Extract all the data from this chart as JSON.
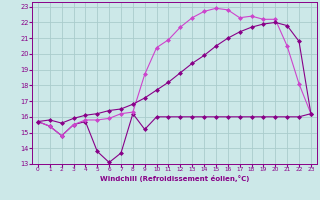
{
  "xlabel": "Windchill (Refroidissement éolien,°C)",
  "xlim": [
    -0.5,
    23.5
  ],
  "ylim": [
    13,
    23.3
  ],
  "yticks": [
    13,
    14,
    15,
    16,
    17,
    18,
    19,
    20,
    21,
    22,
    23
  ],
  "xticks": [
    0,
    1,
    2,
    3,
    4,
    5,
    6,
    7,
    8,
    9,
    10,
    11,
    12,
    13,
    14,
    15,
    16,
    17,
    18,
    19,
    20,
    21,
    22,
    23
  ],
  "bg_color": "#cce8e8",
  "grid_color": "#aacccc",
  "line_color": "#880088",
  "line_color2": "#cc44cc",
  "series_wc": [
    15.7,
    15.4,
    14.8,
    15.5,
    15.7,
    13.8,
    13.1,
    13.7,
    16.2,
    15.2,
    16.0,
    16.0,
    16.0,
    16.0,
    16.0,
    16.0,
    16.0,
    16.0,
    16.0,
    16.0,
    16.0,
    16.0,
    16.0,
    16.2
  ],
  "series_temp": [
    15.7,
    15.4,
    14.8,
    15.5,
    15.8,
    15.8,
    15.9,
    16.2,
    16.3,
    18.7,
    20.4,
    20.9,
    21.7,
    22.3,
    22.7,
    22.9,
    22.8,
    22.3,
    22.4,
    22.2,
    22.2,
    20.5,
    18.1,
    16.2
  ],
  "series_lin": [
    15.7,
    15.8,
    15.6,
    15.9,
    16.1,
    16.2,
    16.4,
    16.5,
    16.8,
    17.2,
    17.7,
    18.2,
    18.8,
    19.4,
    19.9,
    20.5,
    21.0,
    21.4,
    21.7,
    21.9,
    22.0,
    21.8,
    20.8,
    16.2
  ]
}
